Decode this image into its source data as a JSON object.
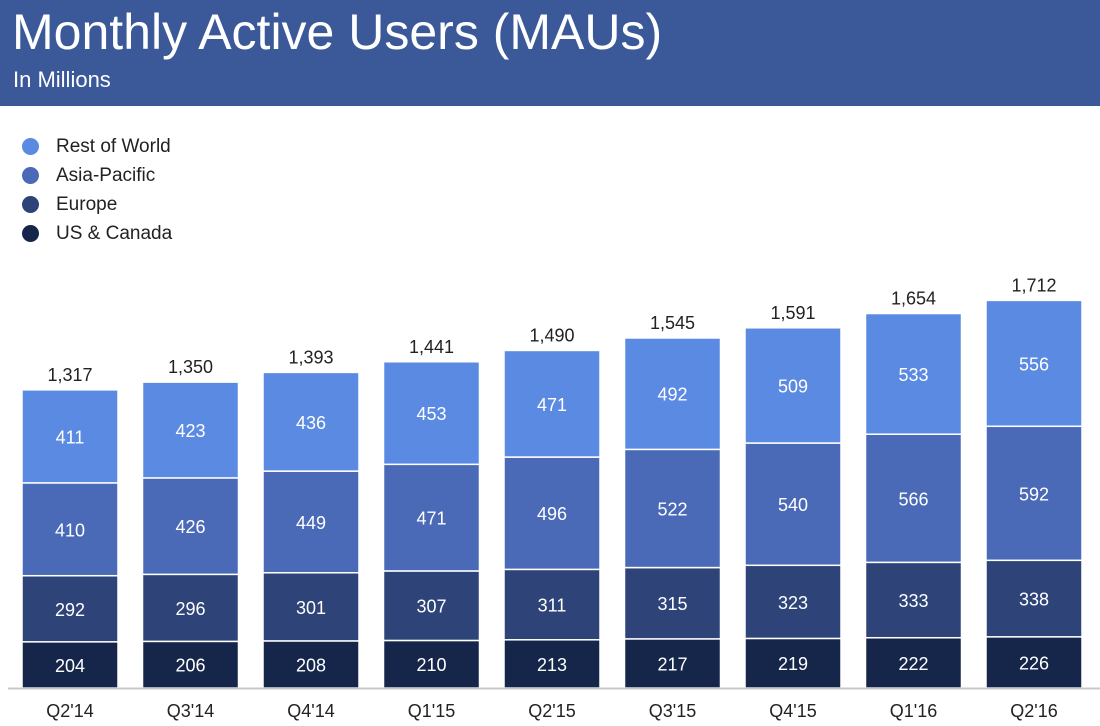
{
  "header": {
    "title": "Monthly Active Users (MAUs)",
    "subtitle": "In Millions"
  },
  "colors": {
    "header_bg": "#3b5998",
    "rest_of_world": "#5b8ae2",
    "asia_pacific": "#4a6ab8",
    "europe": "#2e4478",
    "us_canada": "#16264a",
    "bar_label": "#ffffff",
    "total_label": "#222222"
  },
  "chart_data": {
    "type": "bar",
    "stacked": true,
    "title": "Monthly Active Users (MAUs)",
    "subtitle": "In Millions",
    "legend_position": "top-left",
    "grid": false,
    "categories": [
      "Q2'14",
      "Q3'14",
      "Q4'14",
      "Q1'15",
      "Q2'15",
      "Q3'15",
      "Q4'15",
      "Q1'16",
      "Q2'16"
    ],
    "series": [
      {
        "name": "US & Canada",
        "color": "#16264a",
        "values": [
          204,
          206,
          208,
          210,
          213,
          217,
          219,
          222,
          226
        ]
      },
      {
        "name": "Europe",
        "color": "#2e4478",
        "values": [
          292,
          296,
          301,
          307,
          311,
          315,
          323,
          333,
          338
        ]
      },
      {
        "name": "Asia-Pacific",
        "color": "#4a6ab8",
        "values": [
          410,
          426,
          449,
          471,
          496,
          522,
          540,
          566,
          592
        ]
      },
      {
        "name": "Rest of World",
        "color": "#5b8ae2",
        "values": [
          411,
          423,
          436,
          453,
          471,
          492,
          509,
          533,
          556
        ]
      }
    ],
    "totals": [
      "1,317",
      "1,350",
      "1,393",
      "1,441",
      "1,490",
      "1,545",
      "1,591",
      "1,654",
      "1,712"
    ],
    "ylim": [
      0,
      1712
    ]
  }
}
